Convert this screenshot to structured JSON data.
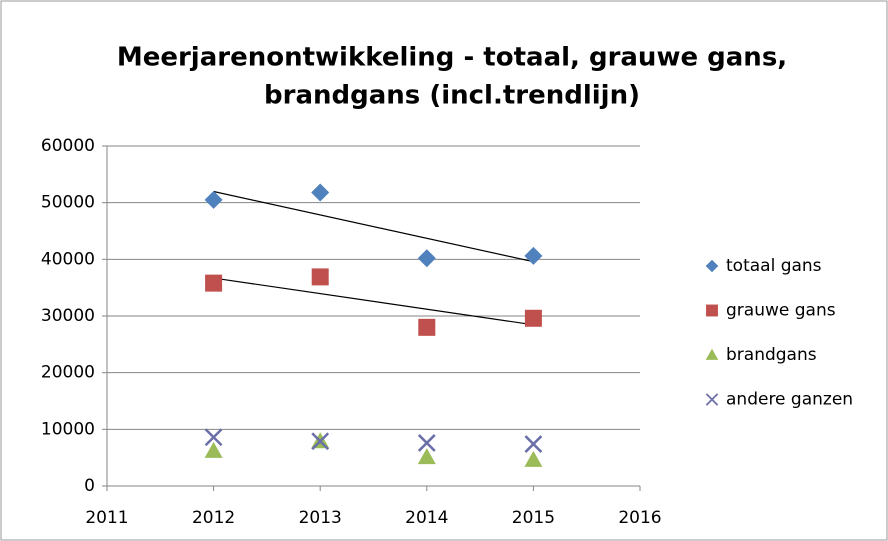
{
  "chart_data": {
    "type": "scatter",
    "title": [
      "Meerjarenontwikkeling - totaal, grauwe gans,",
      "brandgans (incl.trendlijn)"
    ],
    "x": [
      2012,
      2013,
      2014,
      2015
    ],
    "series": [
      {
        "name": "totaal gans",
        "color": "#4f81bd",
        "marker": "diamond",
        "trendline": true,
        "values": [
          50500,
          51800,
          40200,
          40600
        ]
      },
      {
        "name": "grauwe gans",
        "color": "#c0504d",
        "marker": "square",
        "trendline": true,
        "values": [
          35800,
          36900,
          28000,
          29600
        ]
      },
      {
        "name": "brandgans",
        "color": "#9bbb59",
        "marker": "triangle",
        "trendline": false,
        "values": [
          6200,
          7900,
          5100,
          4600
        ]
      },
      {
        "name": "andere ganzen",
        "color": "#6b6fa8",
        "marker": "x",
        "trendline": false,
        "values": [
          8600,
          7900,
          7600,
          7400
        ]
      }
    ],
    "xlim": [
      2011,
      2016
    ],
    "xticks": [
      2011,
      2012,
      2013,
      2014,
      2015,
      2016
    ],
    "ylim": [
      0,
      60000
    ],
    "yticks": [
      0,
      10000,
      20000,
      30000,
      40000,
      50000,
      60000
    ],
    "grid": true,
    "legend": "right"
  }
}
